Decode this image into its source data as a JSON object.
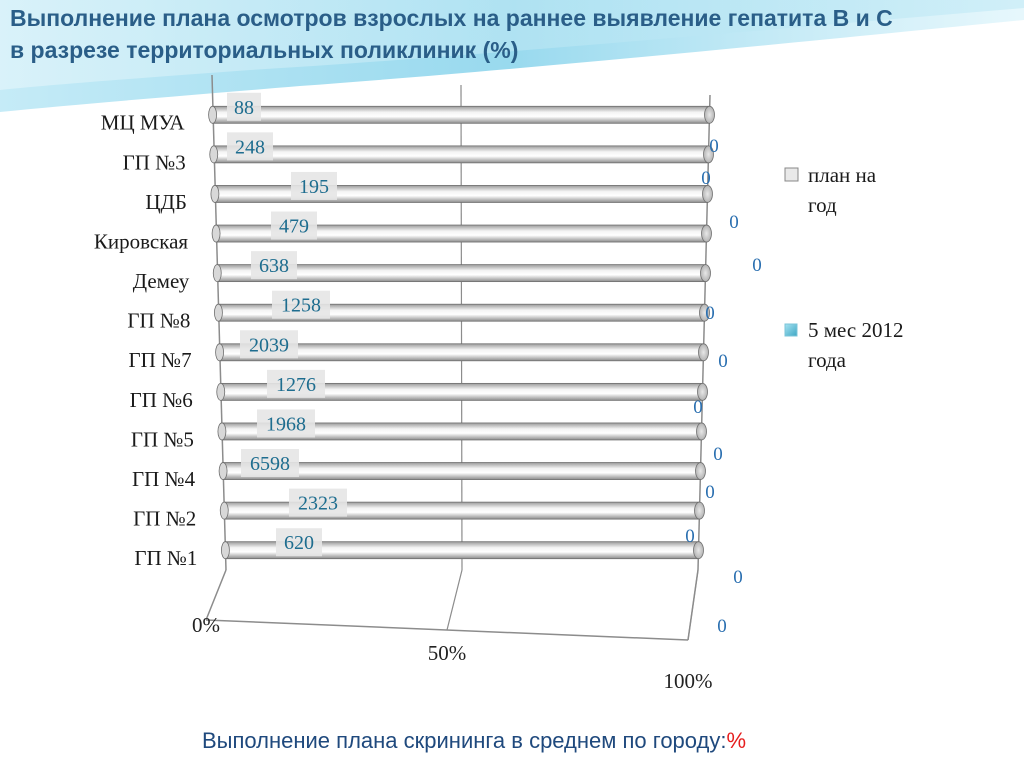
{
  "title": {
    "line1": "Выполнение плана осмотров взрослых на раннее выявление гепатита В и С",
    "line2": "в разрезе территориальных поликлиник (%)"
  },
  "chart_data": {
    "type": "bar",
    "orientation": "horizontal",
    "style": "3d-cylinder",
    "categories": [
      "МЦ МУА",
      "ГП №3",
      "ЦДБ",
      "Кировская",
      "Демеу",
      "ГП №8",
      "ГП  №7",
      "ГП №6",
      "ГП №5",
      "ГП №4",
      "ГП №2",
      "ГП №1"
    ],
    "series": [
      {
        "name": "план на год",
        "values": [
          100,
          100,
          100,
          100,
          100,
          100,
          100,
          100,
          100,
          100,
          100,
          100
        ],
        "color": "#c8c8c8"
      },
      {
        "name": "5 мес 2012 года",
        "values": [
          0,
          0,
          0,
          0,
          0,
          0,
          0,
          0,
          0,
          0,
          0,
          0
        ],
        "color": "#4bacc6"
      }
    ],
    "data_labels": [
      "88",
      "248",
      "195",
      "479",
      "638",
      "1258",
      "2039",
      "1276",
      "1968",
      "6598",
      "2323",
      "620"
    ],
    "right_labels": [
      "0",
      "0",
      "0",
      "0",
      "0",
      "0",
      "0",
      "0",
      "0",
      "0",
      "0",
      "0"
    ],
    "x_ticks": [
      "0%",
      "50%",
      "100%"
    ],
    "xlim": [
      0,
      100
    ],
    "legend_position": "right",
    "grid": true
  },
  "footer": {
    "text": "Выполнение плана скрининга в среднем по городу:",
    "percent": "%"
  },
  "colors": {
    "title": "#2a5e88",
    "footer": "#1f497d",
    "accent": "#e61d1d",
    "data_label": "#1e6d8f",
    "background_swoosh": "#8fd3ea"
  }
}
